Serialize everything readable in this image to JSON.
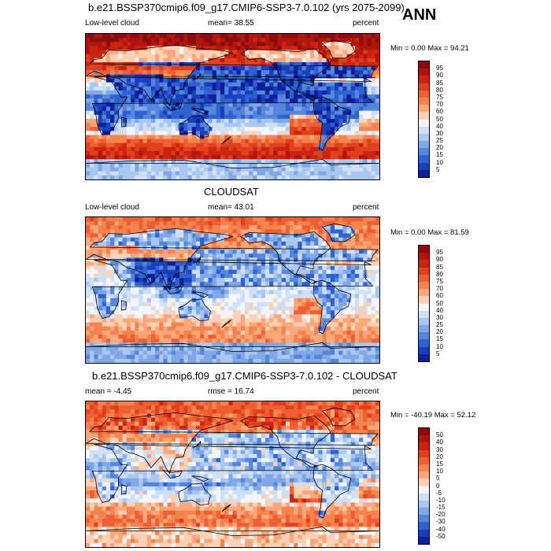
{
  "season": "ANN",
  "panels": [
    {
      "title": "b.e21.BSSP370cmip6.f09_g17.CMIP6-SSP3-7.0.102 (yrs 2075-2099)",
      "left": "Low-level cloud",
      "center": "mean=  38.55",
      "right": "percent",
      "minmax": "Min =   0.00 Max =  94.21",
      "levels": [
        "95",
        "90",
        "85",
        "80",
        "75",
        "70",
        "60",
        "50",
        "40",
        "30",
        "25",
        "20",
        "15",
        "10",
        "5"
      ],
      "pattern": "model"
    },
    {
      "title": "CLOUDSAT",
      "left": "Low-level cloud",
      "center": "mean=  43.01",
      "right": "percent",
      "minmax": "Min =   0.00 Max =  81.59",
      "levels": [
        "95",
        "90",
        "85",
        "80",
        "75",
        "70",
        "60",
        "50",
        "40",
        "30",
        "25",
        "20",
        "15",
        "10",
        "5"
      ],
      "pattern": "obs"
    },
    {
      "title": "b.e21.BSSP370cmip6.f09_g17.CMIP6-SSP3-7.0.102 - CLOUDSAT",
      "left": "mean =  -4.45",
      "center": "rmse =  16.74",
      "right": "percent",
      "minmax": "Min = -40.19 Max =  52.12",
      "levels": [
        "50",
        "40",
        "30",
        "20",
        "15",
        "10",
        "5",
        "0",
        "-5",
        "-10",
        "-15",
        "-20",
        "-30",
        "-40",
        "-50"
      ],
      "pattern": "diff"
    }
  ],
  "colors": {
    "scale": [
      "#8e0b0b",
      "#b0160e",
      "#cc2410",
      "#e0401c",
      "#ee5f33",
      "#f5834f",
      "#fba77a",
      "#fdd1b4",
      "#f2f6fc",
      "#cfe0f6",
      "#a9c7ef",
      "#80a8e6",
      "#5585dc",
      "#2f61d0",
      "#1a3fbc",
      "#0f1f9a"
    ],
    "land_outline": "#000000"
  }
}
